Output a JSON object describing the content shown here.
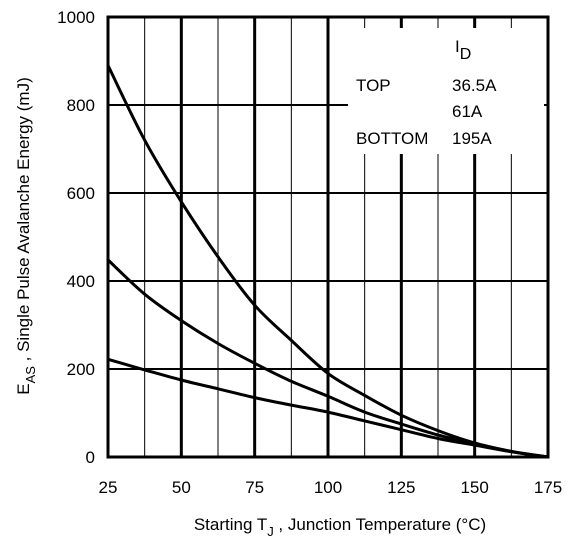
{
  "chart_data": {
    "type": "line",
    "xlabel_prefix": "Starting T",
    "xlabel_sub": "J",
    "xlabel_suffix": " , Junction Temperature (°C)",
    "ylabel_main": "E",
    "ylabel_sub": "AS",
    "ylabel_suffix": " , Single Pulse Avalanche Energy (mJ)",
    "xlim": [
      25,
      175
    ],
    "ylim": [
      0,
      1000
    ],
    "x_ticks": [
      25,
      50,
      75,
      100,
      125,
      150,
      175
    ],
    "y_ticks": [
      0,
      200,
      400,
      600,
      800,
      1000
    ],
    "x_minor_grid_step": 12.5,
    "y_grid_step": 200,
    "legend": {
      "header_main": "I",
      "header_sub": "D",
      "placement": "top-right",
      "rows": [
        {
          "label": "TOP",
          "value": "36.5A"
        },
        {
          "label": "",
          "value": "61A"
        },
        {
          "label": "BOTTOM",
          "value": "195A"
        }
      ]
    },
    "series": [
      {
        "name": "36.5A",
        "x": [
          25,
          37.5,
          50,
          62.5,
          75,
          87.5,
          100,
          112.5,
          125,
          137.5,
          150,
          162.5,
          175
        ],
        "y": [
          890,
          720,
          580,
          455,
          345,
          265,
          190,
          140,
          95,
          60,
          32,
          13,
          0
        ]
      },
      {
        "name": "61A",
        "x": [
          25,
          37.5,
          50,
          62.5,
          75,
          87.5,
          100,
          112.5,
          125,
          137.5,
          150,
          162.5,
          175
        ],
        "y": [
          448,
          370,
          310,
          258,
          213,
          172,
          138,
          102,
          75,
          50,
          30,
          12,
          0
        ]
      },
      {
        "name": "195A",
        "x": [
          25,
          37.5,
          50,
          62.5,
          75,
          87.5,
          100,
          112.5,
          125,
          137.5,
          150,
          162.5,
          175
        ],
        "y": [
          222,
          198,
          175,
          155,
          135,
          118,
          102,
          82,
          62,
          42,
          27,
          12,
          0
        ]
      }
    ]
  }
}
